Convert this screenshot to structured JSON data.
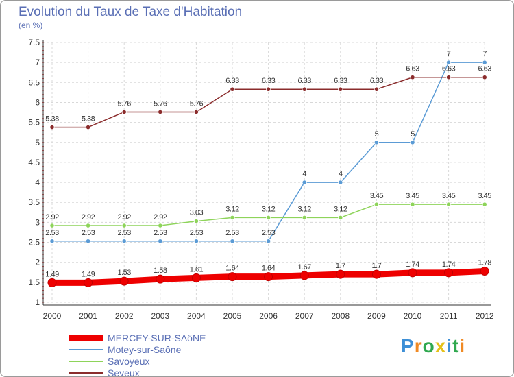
{
  "title": "Evolution du Taux de Taxe d'Habitation",
  "subtitle": "(en %)",
  "logo": {
    "text": "Proxiti",
    "colors": [
      "#3d8fd6",
      "#f08a24",
      "#2fa84f",
      "#e5c11a",
      "#3d8fd6",
      "#2fa84f",
      "#f08a24"
    ]
  },
  "chart_data": {
    "type": "line",
    "x": [
      "2000",
      "2001",
      "2002",
      "2003",
      "2004",
      "2005",
      "2006",
      "2007",
      "2008",
      "2009",
      "2010",
      "2011",
      "2012"
    ],
    "ylim": [
      1,
      7.5
    ],
    "yticks": [
      "1",
      "1.5",
      "2",
      "2.5",
      "3",
      "3.5",
      "4",
      "4.5",
      "5",
      "5.5",
      "6",
      "6.5",
      "7",
      "7.5"
    ],
    "grid": true,
    "legend_position": "bottom-left",
    "series": [
      {
        "name": "MERCEY-SUR-SAôNE",
        "color": "#ee0000",
        "emphasis": true,
        "values": [
          1.49,
          1.49,
          1.53,
          1.58,
          1.61,
          1.64,
          1.64,
          1.67,
          1.7,
          1.7,
          1.74,
          1.74,
          1.78
        ],
        "labels": [
          "1.49",
          "1.49",
          "1.53",
          "1.58",
          "1.61",
          "1.64",
          "1.64",
          "1.67",
          "1.7",
          "1.7",
          "1.74",
          "1.74",
          "1.78"
        ]
      },
      {
        "name": "Motey-sur-Saône",
        "color": "#5b9bd5",
        "emphasis": false,
        "values": [
          2.53,
          2.53,
          2.53,
          2.53,
          2.53,
          2.53,
          2.53,
          4,
          4,
          5,
          5,
          7,
          7
        ],
        "labels": [
          "2.53",
          "2.53",
          "2.53",
          "2.53",
          "2.53",
          "2.53",
          "2.53",
          "4",
          "4",
          "5",
          "5",
          "7",
          "7"
        ]
      },
      {
        "name": "Savoyeux",
        "color": "#8ed45a",
        "emphasis": false,
        "values": [
          2.92,
          2.92,
          2.92,
          2.92,
          3.03,
          3.12,
          3.12,
          3.12,
          3.12,
          3.45,
          3.45,
          3.45,
          3.45
        ],
        "labels": [
          "2.92",
          "2.92",
          "2.92",
          "2.92",
          "3.03",
          "3.12",
          "3.12",
          "3.12",
          "3.12",
          "3.45",
          "3.45",
          "3.45",
          "3.45"
        ]
      },
      {
        "name": "Seveux",
        "color": "#8b2c2c",
        "emphasis": false,
        "values": [
          5.38,
          5.38,
          5.76,
          5.76,
          5.76,
          6.33,
          6.33,
          6.33,
          6.33,
          6.33,
          6.63,
          6.63,
          6.63
        ],
        "labels": [
          "5.38",
          "5.38",
          "5.76",
          "5.76",
          "5.76",
          "6.33",
          "6.33",
          "6.33",
          "6.33",
          "6.33",
          "6.63",
          "6.63",
          "6.63"
        ]
      }
    ]
  }
}
